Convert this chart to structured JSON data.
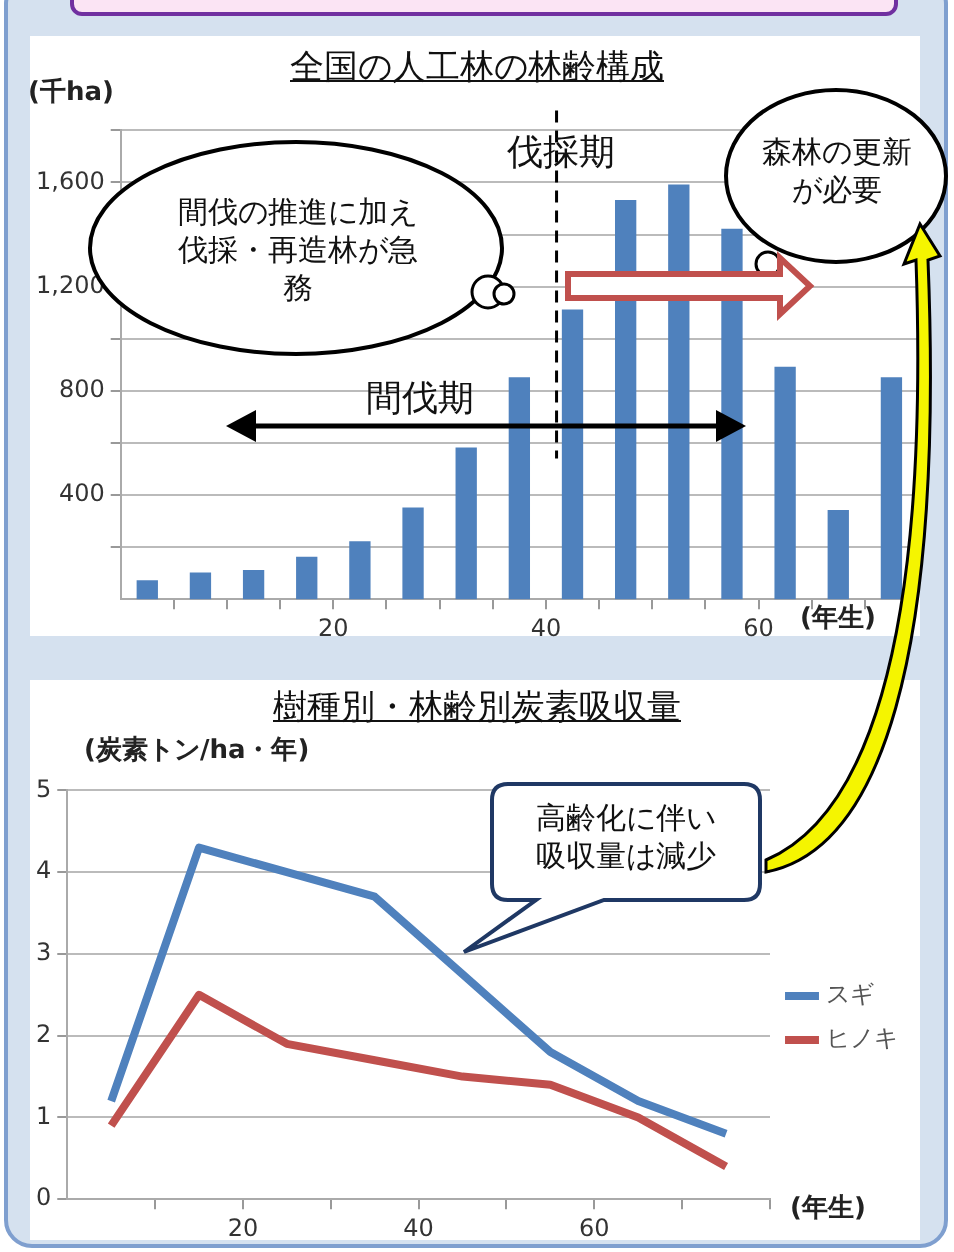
{
  "chart_data": [
    {
      "type": "bar",
      "title": "全国の人工林の林齢構成",
      "ylabel": "(千ha)",
      "xlabel": "(年生)",
      "x": [
        2.5,
        7.5,
        12.5,
        17.5,
        22.5,
        27.5,
        32.5,
        37.5,
        42.5,
        47.5,
        52.5,
        57.5,
        62.5,
        67.5,
        72.5
      ],
      "values": [
        70,
        100,
        110,
        160,
        220,
        350,
        580,
        850,
        1110,
        1530,
        1590,
        1420,
        890,
        340,
        850
      ],
      "color": "#4f81bd",
      "xlim": [
        0,
        75
      ],
      "xticks": [
        {
          "value": 5,
          "label": null
        },
        {
          "value": 10,
          "label": null
        },
        {
          "value": 15,
          "label": null
        },
        20,
        {
          "value": 25,
          "label": null
        },
        {
          "value": 30,
          "label": null
        },
        {
          "value": 35,
          "label": null
        },
        40,
        {
          "value": 45,
          "label": null
        },
        {
          "value": 50,
          "label": null
        },
        {
          "value": 55,
          "label": null
        },
        60,
        {
          "value": 65,
          "label": null
        },
        {
          "value": 70,
          "label": null
        }
      ],
      "ylim": [
        0,
        1800
      ],
      "yticks": [
        {
          "value": 200,
          "label": null
        },
        400,
        {
          "value": 600,
          "label": null
        },
        800,
        {
          "value": 1000,
          "label": null
        },
        {
          "value": 1200,
          "label": "1,200"
        },
        {
          "value": 1400,
          "label": null
        },
        {
          "value": 1600,
          "label": "1,600"
        },
        {
          "value": 1800,
          "label": null
        }
      ],
      "grid": "y",
      "ref_lines": [
        {
          "axis": "x",
          "value": 41,
          "label": "伐採期",
          "line_style": "dashed",
          "color": "#000000"
        }
      ],
      "annotations": [
        "間伐の推進に加え伐採・再造林が急務",
        "森林の更新が必要",
        "間伐期"
      ]
    },
    {
      "type": "line",
      "title": "樹種別・林齢別炭素吸収量",
      "ylabel": "(炭素トン/ha・年)",
      "xlabel": "(年生)",
      "x": [
        5,
        15,
        25,
        35,
        45,
        55,
        65,
        75
      ],
      "series": [
        {
          "name": "スギ",
          "color": "#4f81bd",
          "values": [
            1.2,
            4.3,
            4.0,
            3.7,
            2.75,
            1.8,
            1.2,
            0.8
          ]
        },
        {
          "name": "ヒノキ",
          "color": "#c0504d",
          "values": [
            0.9,
            2.5,
            1.9,
            1.7,
            1.5,
            1.4,
            1.0,
            0.4
          ]
        }
      ],
      "xlim": [
        0,
        80
      ],
      "xticks": [
        {
          "value": 10,
          "label": null
        },
        20,
        {
          "value": 30,
          "label": null
        },
        40,
        {
          "value": 50,
          "label": null
        },
        60,
        {
          "value": 70,
          "label": null
        },
        {
          "value": 80,
          "label": null
        }
      ],
      "ylim": [
        0,
        5
      ],
      "yticks": [
        0,
        1,
        2,
        3,
        4,
        5
      ],
      "grid": "y",
      "legend": "right",
      "marker": "none",
      "line_style": "solid",
      "annotations": [
        "高齢化に伴い吸収量は減少"
      ]
    }
  ]
}
